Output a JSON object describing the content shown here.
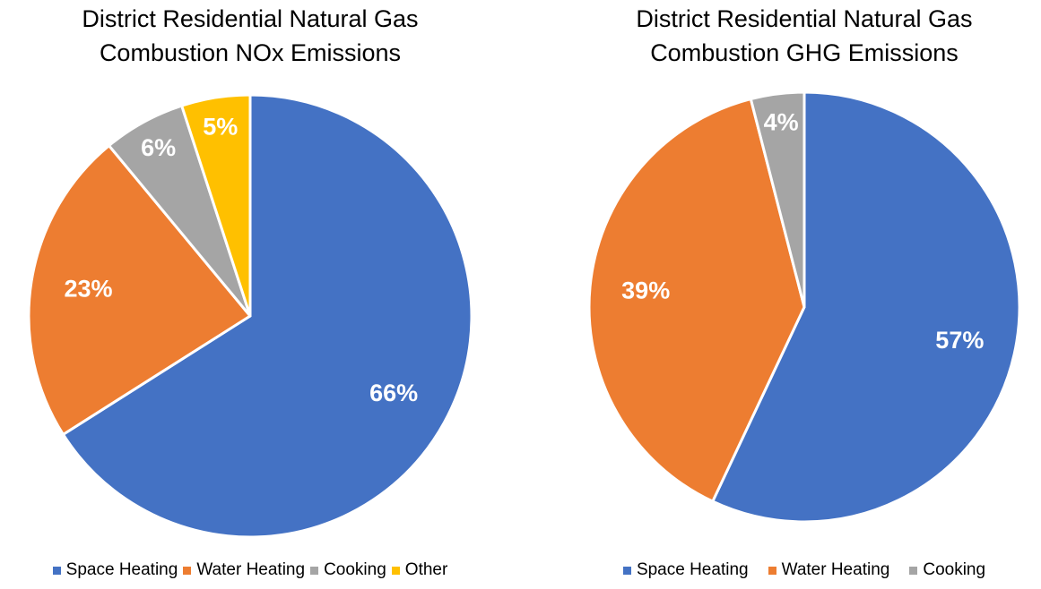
{
  "chart_data": [
    {
      "type": "pie",
      "title": "District Residential Natural Gas Combustion NOx Emissions",
      "categories": [
        "Space Heating",
        "Water Heating",
        "Cooking",
        "Other"
      ],
      "values": [
        66,
        23,
        6,
        5
      ],
      "value_labels": [
        "66%",
        "23%",
        "6%",
        "5%"
      ],
      "colors": [
        "#4472c4",
        "#ed7d31",
        "#a5a5a5",
        "#ffc000"
      ],
      "legend": "bottom"
    },
    {
      "type": "pie",
      "title": "District Residential Natural Gas Combustion GHG Emissions",
      "categories": [
        "Space Heating",
        "Water Heating",
        "Cooking"
      ],
      "values": [
        57,
        39,
        4
      ],
      "value_labels": [
        "57%",
        "39%",
        "4%"
      ],
      "colors": [
        "#4472c4",
        "#ed7d31",
        "#a5a5a5"
      ],
      "legend": "bottom"
    }
  ]
}
